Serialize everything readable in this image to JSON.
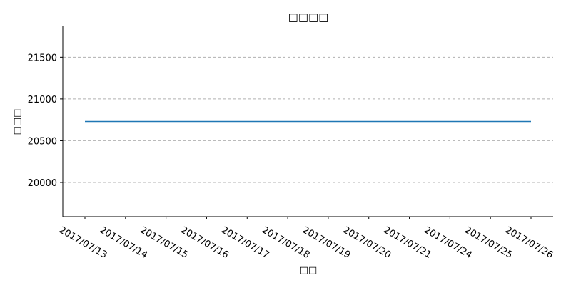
{
  "chart_data": {
    "type": "line",
    "title": "（乱码）",
    "title_display": "□□□□",
    "xlabel_display": "□□",
    "ylabel_display": "□□□",
    "categories": [
      "2017/07/13",
      "2017/07/14",
      "2017/07/15",
      "2017/07/16",
      "2017/07/17",
      "2017/07/18",
      "2017/07/19",
      "2017/07/20",
      "2017/07/21",
      "2017/07/24",
      "2017/07/25",
      "2017/07/26"
    ],
    "series": [
      {
        "values": [
          20730,
          20730,
          20730,
          20730,
          20730,
          20730,
          20730,
          20730,
          20730,
          20730,
          20730,
          20730
        ],
        "color": "#1f77b4"
      }
    ],
    "ylim": [
      19590,
      21870
    ],
    "yticks": [
      20000,
      20500,
      21000,
      21500
    ],
    "grid": "y-dashed",
    "legend": "none"
  }
}
